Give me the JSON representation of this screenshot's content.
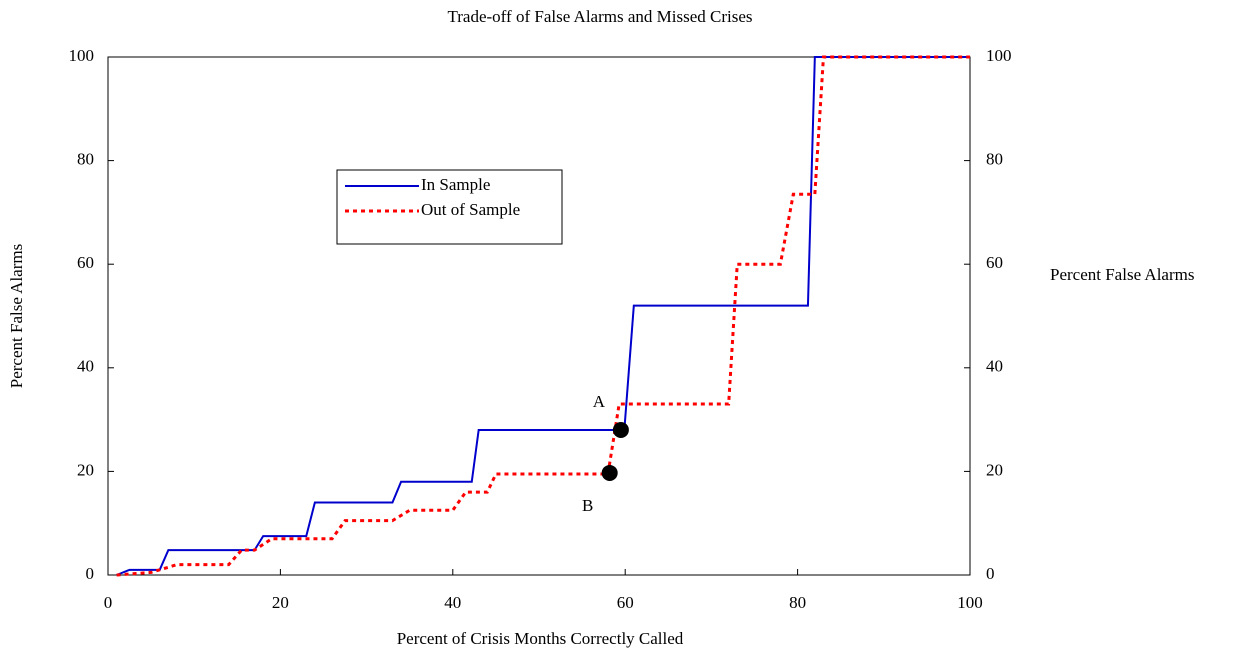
{
  "chart_data": {
    "type": "line",
    "title": "Trade-off of False Alarms and Missed Crises",
    "xlabel": "Percent of Crisis Months Correctly Called",
    "ylabel": "Percent False Alarms",
    "y2label": "Percent False Alarms",
    "xlim": [
      0,
      100
    ],
    "xticks": [
      0,
      20,
      40,
      60,
      80,
      100
    ],
    "ylim": [
      0,
      100
    ],
    "yticks": [
      0,
      20,
      40,
      60,
      80,
      100
    ],
    "y2lim": [
      0,
      100
    ],
    "y2ticks": [
      0,
      20,
      40,
      60,
      80,
      100
    ],
    "legend": "center left",
    "series": [
      {
        "name": "In Sample",
        "color": "#0000cc",
        "style": "solid",
        "x": [
          1,
          2.5,
          6,
          7,
          17,
          18,
          23,
          24,
          33,
          34,
          42.2,
          43,
          59.9,
          61,
          81.2,
          82,
          100
        ],
        "values": [
          0,
          1,
          1,
          4.8,
          4.8,
          7.5,
          7.5,
          14,
          14,
          18,
          18,
          28,
          28,
          52,
          52,
          100,
          100
        ]
      },
      {
        "name": "Out of Sample",
        "color": "#ff0000",
        "style": "dotted",
        "x": [
          1,
          5,
          7,
          8,
          14,
          15.5,
          17,
          19,
          26,
          27.5,
          33,
          35,
          40,
          41.5,
          44,
          45,
          58,
          59.3,
          72,
          73,
          78,
          79.5,
          82,
          83,
          100
        ],
        "values": [
          0,
          0.5,
          1.5,
          2,
          2,
          4.8,
          4.8,
          7,
          7,
          10.5,
          10.5,
          12.5,
          12.5,
          16,
          16,
          19.5,
          19.5,
          33,
          33,
          60,
          60,
          73.5,
          73.5,
          100,
          100
        ]
      }
    ],
    "points": [
      {
        "label": "A",
        "x": 59.5,
        "y": 28
      },
      {
        "label": "B",
        "x": 58.2,
        "y": 19.7
      }
    ]
  }
}
